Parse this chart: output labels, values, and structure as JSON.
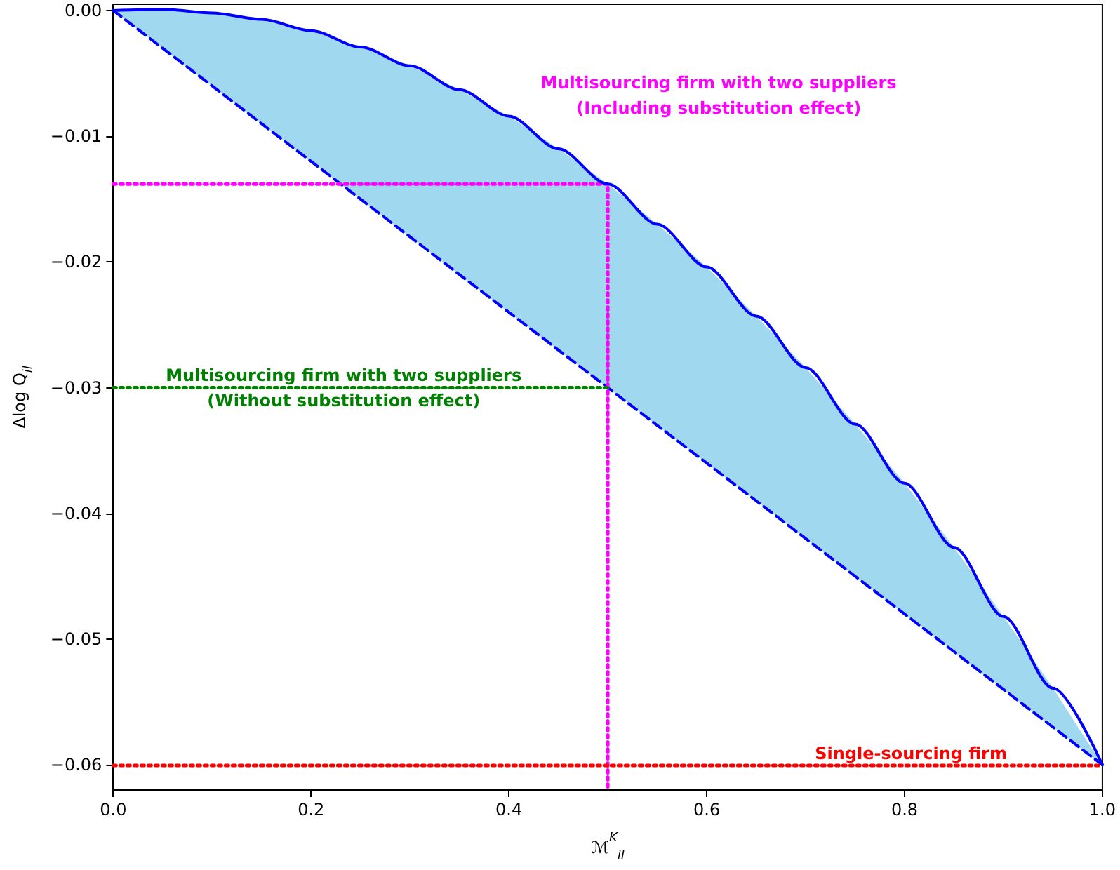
{
  "chart_data": {
    "type": "line",
    "xlabel": "ℳ$^{K}$$_{il}$",
    "ylabel": "Δlog Q$_{il}$",
    "xlim": [
      0,
      1
    ],
    "ylim": [
      -0.062,
      0.0005
    ],
    "xticks": [
      {
        "value": 0,
        "label": "0.0"
      },
      {
        "value": 0.2,
        "label": "0.2"
      },
      {
        "value": 0.4,
        "label": "0.4"
      },
      {
        "value": 0.6,
        "label": "0.6"
      },
      {
        "value": 0.8,
        "label": "0.8"
      },
      {
        "value": 1,
        "label": "1.0"
      }
    ],
    "yticks": [
      {
        "value": 0,
        "label": "0.00"
      },
      {
        "value": -0.01,
        "label": "−0.01"
      },
      {
        "value": -0.02,
        "label": "−0.02"
      },
      {
        "value": -0.03,
        "label": "−0.03"
      },
      {
        "value": -0.04,
        "label": "−0.04"
      },
      {
        "value": -0.05,
        "label": "−0.05"
      },
      {
        "value": -0.06,
        "label": "−0.06"
      }
    ],
    "grid": false,
    "marker": "none",
    "series": [
      {
        "color": "#0000ff",
        "line_style": "solid",
        "x": [
          0,
          0.05,
          0.1,
          0.15,
          0.2,
          0.25,
          0.3,
          0.35,
          0.4,
          0.45,
          0.5,
          0.55,
          0.6,
          0.65,
          0.7,
          0.75,
          0.8,
          0.85,
          0.9,
          0.95,
          1
        ],
        "values": [
          0,
          0.0001,
          -0.0002,
          -0.0007,
          -0.0016,
          -0.0029,
          -0.0044,
          -0.0063,
          -0.0084,
          -0.011,
          -0.0138,
          -0.017,
          -0.0204,
          -0.0243,
          -0.0284,
          -0.0329,
          -0.0376,
          -0.0427,
          -0.0482,
          -0.0539,
          -0.06
        ],
        "lower": [
          0,
          -0.003,
          -0.006,
          -0.009,
          -0.012,
          -0.015,
          -0.018,
          -0.021,
          -0.024,
          -0.027,
          -0.03,
          -0.033,
          -0.036,
          -0.039,
          -0.042,
          -0.045,
          -0.048,
          -0.051,
          -0.054,
          -0.057,
          -0.06
        ],
        "upper": [
          0,
          0.0001,
          -0.0002,
          -0.0007,
          -0.0016,
          -0.0029,
          -0.0044,
          -0.0063,
          -0.0084,
          -0.011,
          -0.0138,
          -0.017,
          -0.0204,
          -0.0243,
          -0.0284,
          -0.0329,
          -0.0376,
          -0.0427,
          -0.0482,
          -0.0539,
          -0.06
        ]
      },
      {
        "color": "#0000ff",
        "line_style": "dashed",
        "x": [
          0,
          1
        ],
        "values": [
          0,
          -0.06
        ]
      },
      {
        "name": "Multisourcing firm with two suppliers\n(Including substitution effect)",
        "color": "#ff00ff",
        "line_style": "dotted",
        "x": [
          0,
          0.5,
          0.5
        ],
        "values": [
          -0.0138,
          -0.0138,
          -0.062
        ]
      },
      {
        "name": "Multisourcing firm with two suppliers\n(Without substitution effect)",
        "color": "#008000",
        "line_style": "dotted",
        "x": [
          0,
          0.5
        ],
        "values": [
          -0.03,
          -0.03
        ]
      }
    ],
    "ref_lines": [
      {
        "axis": "y",
        "value": -0.06,
        "label": "Single-sourcing firm",
        "color": "#ff0000",
        "line_style": "dotted"
      }
    ]
  }
}
